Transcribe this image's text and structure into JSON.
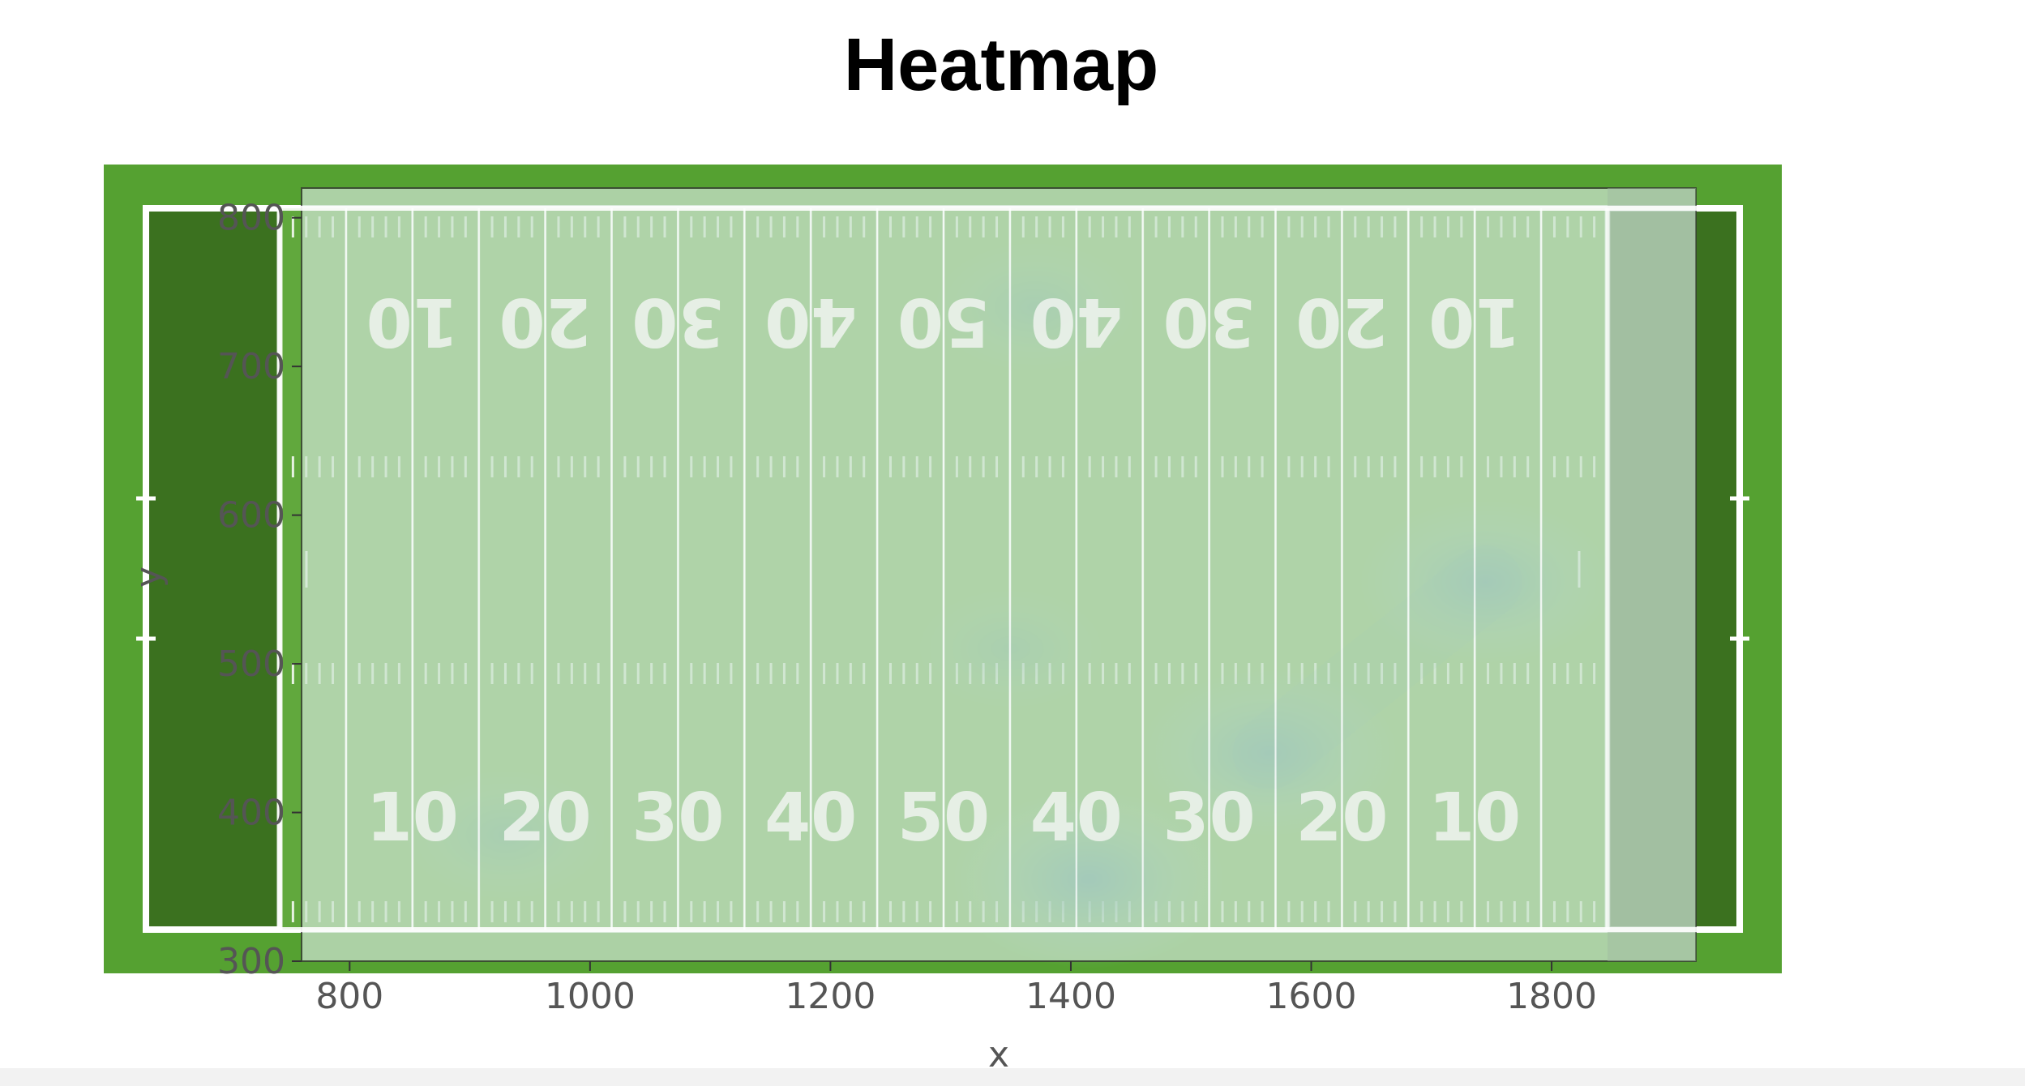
{
  "title": "Heatmap",
  "colors": {
    "field_outer": "#55a131",
    "field_dark": "#3b711f",
    "overlay": "#c9e2cc",
    "lines": "#ffffff",
    "density": "#2f7c8c"
  },
  "chart_data": {
    "type": "heatmap",
    "title": "Heatmap",
    "xlabel": "x",
    "ylabel": "y",
    "xlim": [
      760,
      1920
    ],
    "ylim": [
      300,
      820
    ],
    "xticks": [
      800,
      1000,
      1200,
      1400,
      1600,
      1800
    ],
    "yticks": [
      300,
      400,
      500,
      600,
      700,
      800
    ],
    "grid": false,
    "background": "american-football-field",
    "yard_numbers_top": [
      "10",
      "20",
      "30",
      "40",
      "50",
      "40",
      "30",
      "20",
      "10"
    ],
    "yard_numbers_bottom": [
      "10",
      "20",
      "30",
      "40",
      "50",
      "40",
      "30",
      "20",
      "10"
    ],
    "density_peaks": [
      {
        "x": 1415,
        "y": 355,
        "intensity": 1.0
      },
      {
        "x": 1565,
        "y": 440,
        "intensity": 0.85
      },
      {
        "x": 1745,
        "y": 555,
        "intensity": 0.8
      },
      {
        "x": 1370,
        "y": 740,
        "intensity": 0.3
      },
      {
        "x": 930,
        "y": 385,
        "intensity": 0.3
      },
      {
        "x": 1350,
        "y": 510,
        "intensity": 0.15
      }
    ]
  }
}
